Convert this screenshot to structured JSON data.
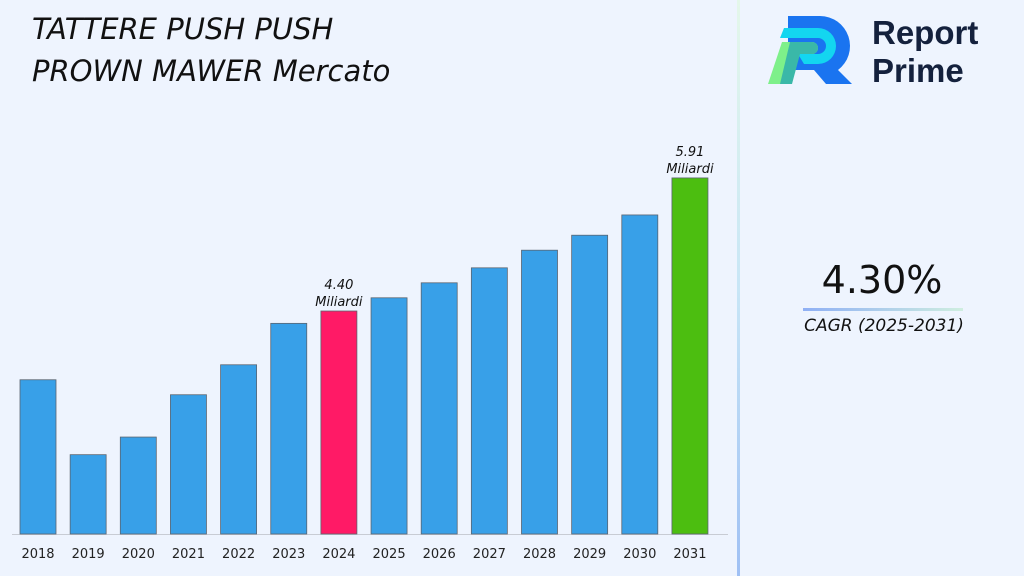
{
  "title": "TATTERE PUSH PUSH PROWN MAWER Mercato",
  "brand": {
    "line1": "Report",
    "line2": "Prime"
  },
  "cagr": {
    "value": "4.30%",
    "label": "CAGR (2025-2031)"
  },
  "chart_data": {
    "type": "bar",
    "title": "",
    "xlabel": "",
    "ylabel": "",
    "ylim": [
      1.87,
      6.0
    ],
    "grid": false,
    "categories": [
      "2018",
      "2019",
      "2020",
      "2021",
      "2022",
      "2023",
      "2024",
      "2025",
      "2026",
      "2027",
      "2028",
      "2029",
      "2030",
      "2031"
    ],
    "values": [
      3.62,
      2.77,
      2.97,
      3.45,
      3.79,
      4.26,
      4.4,
      4.55,
      4.72,
      4.89,
      5.09,
      5.26,
      5.49,
      5.91
    ],
    "colors": {
      "default": "#38a0e8",
      "2024": "#ff1a66",
      "2031": "#4cbe10"
    },
    "annotations": [
      {
        "category": "2024",
        "value_text": "4.40",
        "unit_text": "Miliardi"
      },
      {
        "category": "2031",
        "value_text": "5.91",
        "unit_text": "Miliardi"
      }
    ]
  }
}
